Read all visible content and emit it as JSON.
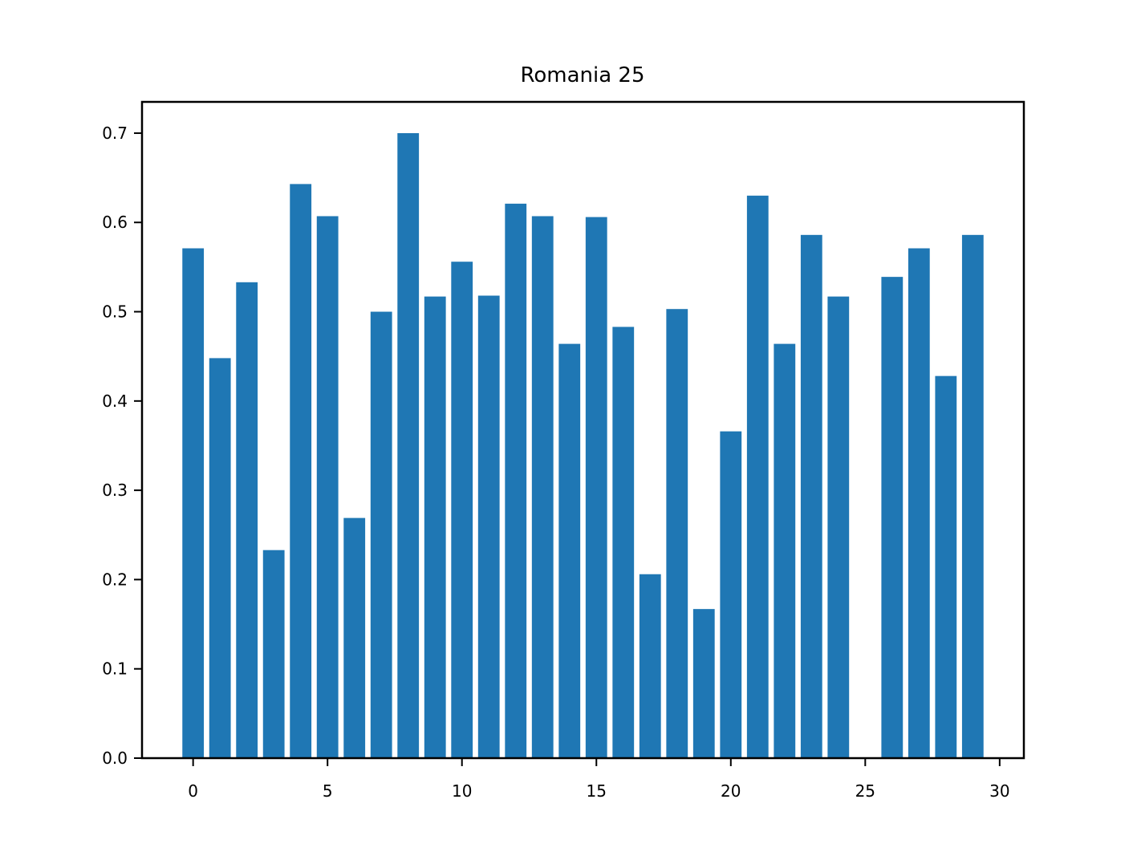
{
  "chart_data": {
    "type": "bar",
    "title": "Romania 25",
    "xlabel": "",
    "ylabel": "",
    "x": [
      0,
      1,
      2,
      3,
      4,
      5,
      6,
      7,
      8,
      9,
      10,
      11,
      12,
      13,
      14,
      15,
      16,
      17,
      18,
      19,
      20,
      21,
      22,
      23,
      24,
      25,
      26,
      27,
      28,
      29
    ],
    "values": [
      0.571,
      0.448,
      0.533,
      0.233,
      0.643,
      0.607,
      0.269,
      0.5,
      0.7,
      0.517,
      0.556,
      0.518,
      0.621,
      0.607,
      0.464,
      0.606,
      0.483,
      0.206,
      0.503,
      0.167,
      0.366,
      0.63,
      0.464,
      0.586,
      0.517,
      0.0,
      0.539,
      0.571,
      0.428,
      0.586
    ],
    "xlim": [
      -1.9,
      30.9
    ],
    "ylim": [
      0,
      0.735
    ],
    "xticks": [
      0,
      5,
      10,
      15,
      20,
      25,
      30
    ],
    "yticks": [
      0.0,
      0.1,
      0.2,
      0.3,
      0.4,
      0.5,
      0.6,
      0.7
    ],
    "xtick_labels": [
      "0",
      "5",
      "10",
      "15",
      "20",
      "25",
      "30"
    ],
    "ytick_labels": [
      "0.0",
      "0.1",
      "0.2",
      "0.3",
      "0.4",
      "0.5",
      "0.6",
      "0.7"
    ],
    "bar_color": "#1f77b4",
    "grid": false,
    "legend": false
  }
}
